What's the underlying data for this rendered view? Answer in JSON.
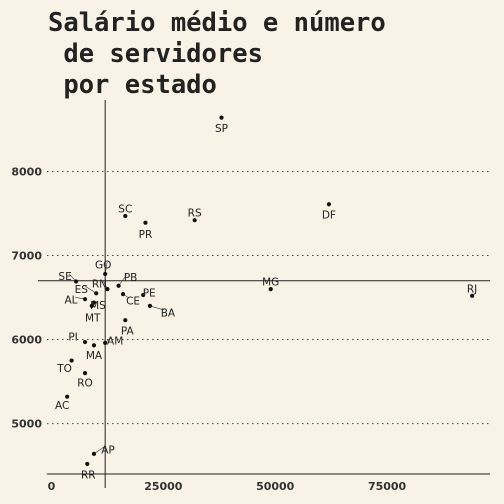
{
  "chart_data": {
    "type": "scatter",
    "title_lines": [
      "Salário médio e número",
      " de servidores",
      " por estado"
    ],
    "xlabel": "",
    "ylabel": "",
    "xlim": [
      -1000,
      98000
    ],
    "ylim": [
      4400,
      8850
    ],
    "xticks": [
      0,
      25000,
      50000,
      75000
    ],
    "xtick_labels": [
      "0",
      "25000",
      "50000",
      "75000"
    ],
    "yticks": [
      5000,
      6000,
      7000,
      8000
    ],
    "ytick_labels": [
      "5000",
      "6000",
      "7000",
      "8000"
    ],
    "reference_lines": {
      "x_mean": 12000,
      "y_mean": 6700
    },
    "grid": "horizontal dotted",
    "points": [
      {
        "label": "SP",
        "x": 38000,
        "y": 8640
      },
      {
        "label": "DF",
        "x": 62000,
        "y": 7610
      },
      {
        "label": "SC",
        "x": 16500,
        "y": 7470
      },
      {
        "label": "PR",
        "x": 21000,
        "y": 7390
      },
      {
        "label": "RS",
        "x": 32000,
        "y": 7420
      },
      {
        "label": "MG",
        "x": 49000,
        "y": 6600
      },
      {
        "label": "RJ",
        "x": 94000,
        "y": 6520
      },
      {
        "label": "GO",
        "x": 12000,
        "y": 6780
      },
      {
        "label": "SE",
        "x": 5500,
        "y": 6690
      },
      {
        "label": "RN",
        "x": 12500,
        "y": 6600
      },
      {
        "label": "PB",
        "x": 15000,
        "y": 6640
      },
      {
        "label": "ES",
        "x": 10000,
        "y": 6550
      },
      {
        "label": "AL",
        "x": 7500,
        "y": 6480
      },
      {
        "label": "MS",
        "x": 9500,
        "y": 6440
      },
      {
        "label": "PE",
        "x": 20500,
        "y": 6530
      },
      {
        "label": "CE",
        "x": 16000,
        "y": 6540
      },
      {
        "label": "MT",
        "x": 9000,
        "y": 6400
      },
      {
        "label": "BA",
        "x": 22000,
        "y": 6400
      },
      {
        "label": "PA",
        "x": 16500,
        "y": 6230
      },
      {
        "label": "AM",
        "x": 12000,
        "y": 5960
      },
      {
        "label": "PI",
        "x": 7500,
        "y": 5970
      },
      {
        "label": "MA",
        "x": 9500,
        "y": 5930
      },
      {
        "label": "TO",
        "x": 4500,
        "y": 5750
      },
      {
        "label": "RO",
        "x": 7500,
        "y": 5600
      },
      {
        "label": "AC",
        "x": 3500,
        "y": 5320
      },
      {
        "label": "AP",
        "x": 9500,
        "y": 4640
      },
      {
        "label": "RR",
        "x": 8000,
        "y": 4520
      }
    ]
  }
}
